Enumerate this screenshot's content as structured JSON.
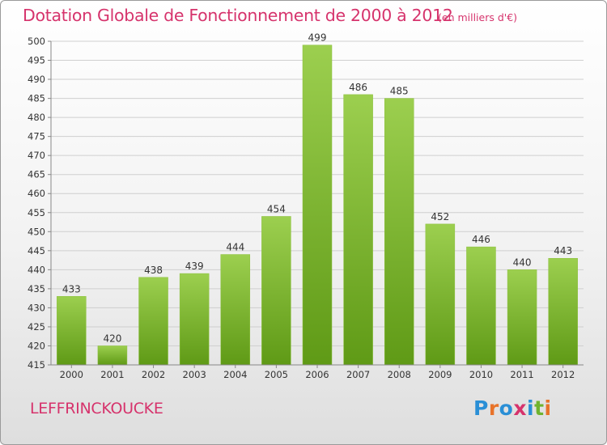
{
  "title": "Dotation Globale de Fonctionnement de 2000 à 2012",
  "subtitle": "(en milliers d'€)",
  "commune": "LEFFRINCKOUCKE",
  "logo": {
    "letters": [
      "P",
      "r",
      "o",
      "x",
      "i",
      "t",
      "i"
    ],
    "colors": [
      "#2a8fd6",
      "#e8732a",
      "#2a8fd6",
      "#d6336c",
      "#2a8fd6",
      "#6fb32f",
      "#e8732a"
    ]
  },
  "colors": {
    "accent": "#d6336c",
    "bar_top": "#9ccf4f",
    "bar_bottom": "#5f9a16"
  },
  "chart_data": {
    "type": "bar",
    "categories": [
      "2000",
      "2001",
      "2002",
      "2003",
      "2004",
      "2005",
      "2006",
      "2007",
      "2008",
      "2009",
      "2010",
      "2011",
      "2012"
    ],
    "values": [
      433,
      420,
      438,
      439,
      444,
      454,
      499,
      486,
      485,
      452,
      446,
      440,
      443
    ],
    "title": "Dotation Globale de Fonctionnement de 2000 à 2012",
    "subtitle": "(en milliers d'€)",
    "ylim": [
      415,
      500
    ],
    "yticks": [
      415,
      420,
      425,
      430,
      435,
      440,
      445,
      450,
      455,
      460,
      465,
      470,
      475,
      480,
      485,
      490,
      495,
      500
    ],
    "grid": true,
    "data_labels": true
  }
}
